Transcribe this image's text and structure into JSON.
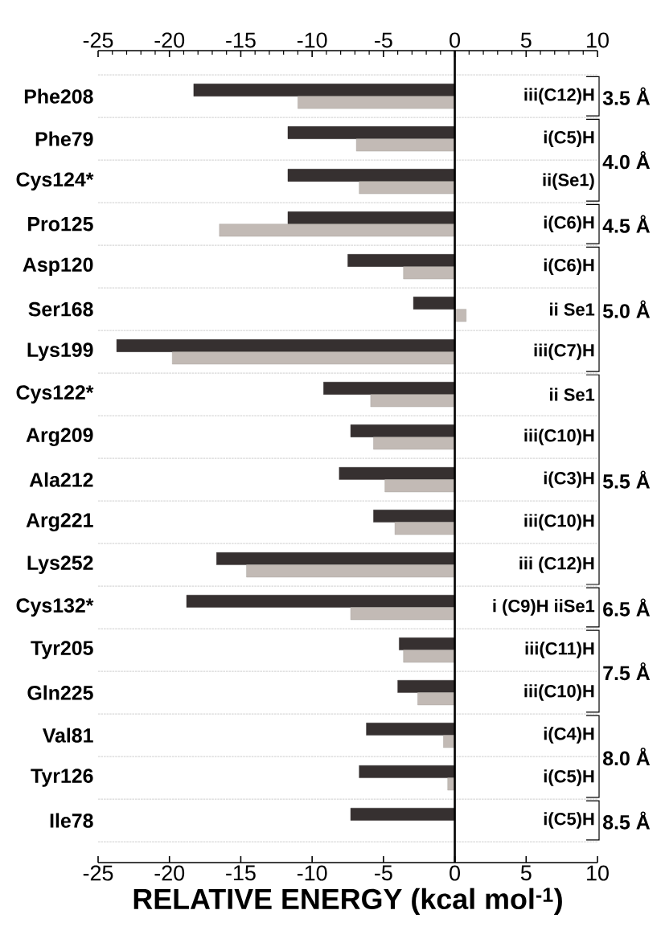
{
  "chart_data": {
    "type": "bar",
    "orientation": "horizontal",
    "xlabel": "RELATIVE ENERGY (kcal mol$^{-1}$)",
    "categories": [
      "Phe208",
      "Phe79",
      "Cys124*",
      "Pro125",
      "Asp120",
      "Ser168",
      "Lys199",
      "Cys122*",
      "Arg209",
      "Ala212",
      "Arg221",
      "Lys252",
      "Cys132*",
      "Tyr205",
      "Gln225",
      "Val81",
      "Tyr126",
      "Ile78"
    ],
    "series": [
      {
        "color": "#363030",
        "values": [
          -18.3,
          -11.7,
          -11.7,
          -11.7,
          -7.5,
          -2.9,
          -23.7,
          -9.2,
          -7.3,
          -8.1,
          -5.7,
          -16.7,
          -18.8,
          -3.9,
          -4.0,
          -6.2,
          -6.7,
          -7.3
        ]
      },
      {
        "color": "#c2bab5",
        "values": [
          -11.0,
          -6.9,
          -6.7,
          -16.5,
          -3.6,
          0.8,
          -19.8,
          -5.9,
          -5.7,
          -4.9,
          -4.2,
          -14.6,
          -7.3,
          -3.6,
          -2.6,
          -0.8,
          -0.5,
          null
        ]
      }
    ],
    "xlim": [
      -25,
      10
    ],
    "xticks": [
      -25,
      -20,
      -15,
      -10,
      -5,
      0,
      5,
      10
    ],
    "x2lim": [
      -25,
      10
    ],
    "x2ticks": [
      -25,
      -20,
      -15,
      -10,
      -5,
      0,
      5,
      10
    ],
    "ref_lines": [
      {
        "axis": "x",
        "value": 0,
        "color": "#000000"
      }
    ],
    "grid": "y",
    "annotations": [
      "iii(C12)H",
      "i(C5)H",
      "ii(Se1)",
      "i(C6)H",
      "i(C6)H",
      "ii Se1",
      "iii(C7)H",
      "ii Se1",
      "iii(C10)H",
      "i(C3)H",
      "iii(C10)H",
      "iii (C12)H",
      "i (C9)H iiSe1",
      "iii(C11)H",
      "iii(C10)H",
      "i(C4)H",
      "i(C5)H",
      "i(C5)H",
      "3.5 Å",
      "4.0 Å",
      "4.5 Å",
      "5.0 Å",
      "5.5 Å",
      "6.5 Å",
      "7.5 Å",
      "8.0 Å",
      "8.5 Å"
    ]
  }
}
